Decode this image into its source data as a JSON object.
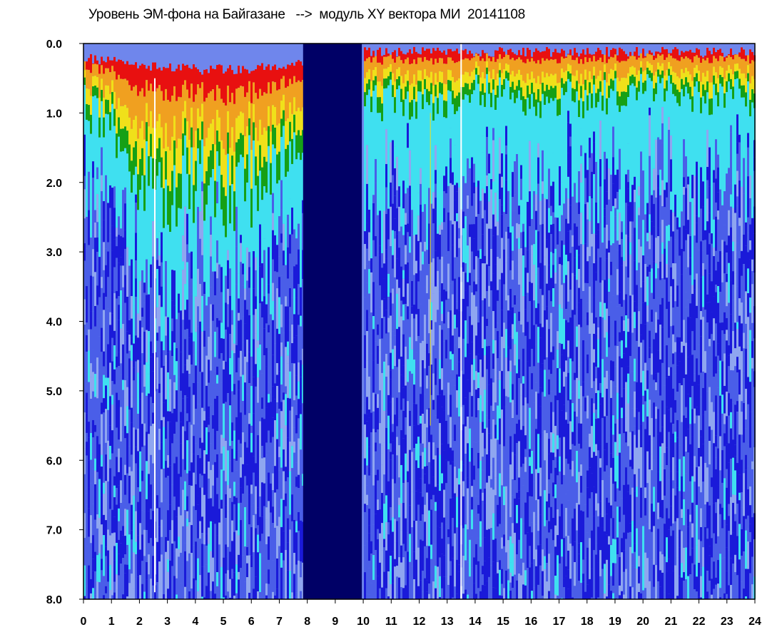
{
  "chart_data": {
    "type": "heatmap",
    "title": "Уровень ЭМ-фона на Байгазане   -->  модуль XY вектора МИ  20141108",
    "xlabel": "",
    "ylabel": "",
    "x_range": [
      0,
      24
    ],
    "y_range": [
      0.0,
      8.0
    ],
    "y_inverted": true,
    "x_ticks": [
      "0",
      "1",
      "2",
      "3",
      "4",
      "5",
      "6",
      "7",
      "8",
      "9",
      "10",
      "11",
      "12",
      "13",
      "14",
      "15",
      "16",
      "17",
      "18",
      "19",
      "20",
      "21",
      "22",
      "23",
      "24"
    ],
    "y_ticks": [
      "0.0",
      "1.0",
      "2.0",
      "3.0",
      "4.0",
      "5.0",
      "6.0",
      "7.0",
      "8.0"
    ],
    "data_gap": {
      "x_start": 7.85,
      "x_end": 9.95,
      "color": "#000066"
    },
    "colormap": [
      "#1a1ad9",
      "#4a5ee8",
      "#8fa6f0",
      "#3fe0f0",
      "#16a016",
      "#f0e01a",
      "#f0a020",
      "#e81010",
      "#ffffff"
    ],
    "intensity_profile": [
      {
        "x": 0.0,
        "top_level": 0.15,
        "warm_depth": 0.7
      },
      {
        "x": 1.0,
        "top_level": 0.15,
        "warm_depth": 1.1
      },
      {
        "x": 2.0,
        "top_level": 0.25,
        "warm_depth": 1.6
      },
      {
        "x": 3.0,
        "top_level": 0.25,
        "warm_depth": 1.7
      },
      {
        "x": 4.0,
        "top_level": 0.3,
        "warm_depth": 1.6
      },
      {
        "x": 5.0,
        "top_level": 0.3,
        "warm_depth": 1.7
      },
      {
        "x": 6.0,
        "top_level": 0.3,
        "warm_depth": 1.6
      },
      {
        "x": 7.0,
        "top_level": 0.25,
        "warm_depth": 1.3
      },
      {
        "x": 10.0,
        "top_level": 0.05,
        "warm_depth": 0.7
      },
      {
        "x": 12.0,
        "top_level": 0.05,
        "warm_depth": 0.8
      },
      {
        "x": 14.0,
        "top_level": 0.05,
        "warm_depth": 0.6
      },
      {
        "x": 16.0,
        "top_level": 0.05,
        "warm_depth": 0.7
      },
      {
        "x": 18.0,
        "top_level": 0.05,
        "warm_depth": 0.7
      },
      {
        "x": 20.0,
        "top_level": 0.05,
        "warm_depth": 0.6
      },
      {
        "x": 22.0,
        "top_level": 0.05,
        "warm_depth": 0.7
      },
      {
        "x": 24.0,
        "top_level": 0.05,
        "warm_depth": 0.7
      }
    ],
    "grid": false,
    "legend": "none"
  }
}
